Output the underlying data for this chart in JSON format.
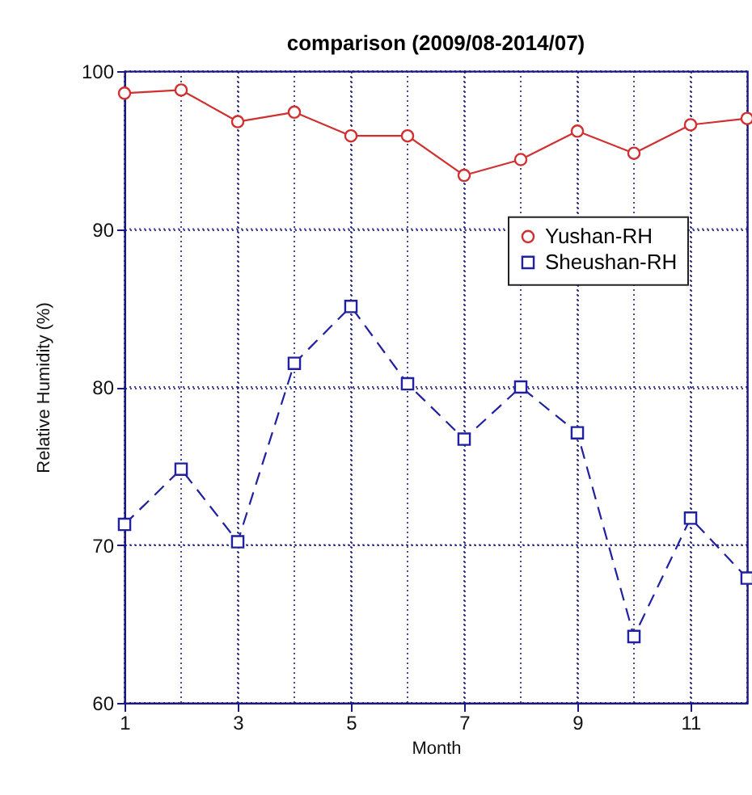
{
  "chart_data": {
    "type": "line",
    "title": "comparison (2009/08-2014/07)",
    "xlabel": "Month",
    "ylabel": "Relative Humidity (%)",
    "x": [
      1,
      2,
      3,
      4,
      5,
      6,
      7,
      8,
      9,
      10,
      11,
      12
    ],
    "series": [
      {
        "name": "Yushan-RH",
        "color": "#d03030",
        "marker": "circle",
        "line_style": "solid",
        "values": [
          98.6,
          98.8,
          96.8,
          97.4,
          95.9,
          95.9,
          93.4,
          94.4,
          96.2,
          94.8,
          96.6,
          97.0
        ]
      },
      {
        "name": "Sheushan-RH",
        "color": "#2020a0",
        "marker": "square",
        "line_style": "dashed",
        "values": [
          71.3,
          74.8,
          70.2,
          81.5,
          85.1,
          80.2,
          76.7,
          80.0,
          77.1,
          64.2,
          71.7,
          67.9
        ]
      }
    ],
    "xlim": [
      1,
      12
    ],
    "ylim": [
      60,
      100
    ],
    "xticks": [
      1,
      {
        "value": 2,
        "label": null
      },
      3,
      {
        "value": 4,
        "label": null
      },
      5,
      {
        "value": 6,
        "label": null
      },
      7,
      {
        "value": 8,
        "label": null
      },
      9,
      {
        "value": 10,
        "label": null
      },
      11,
      {
        "value": 12,
        "label": null
      }
    ],
    "yticks": [
      60,
      70,
      80,
      90,
      100
    ],
    "grid": true,
    "legend": "top right"
  }
}
